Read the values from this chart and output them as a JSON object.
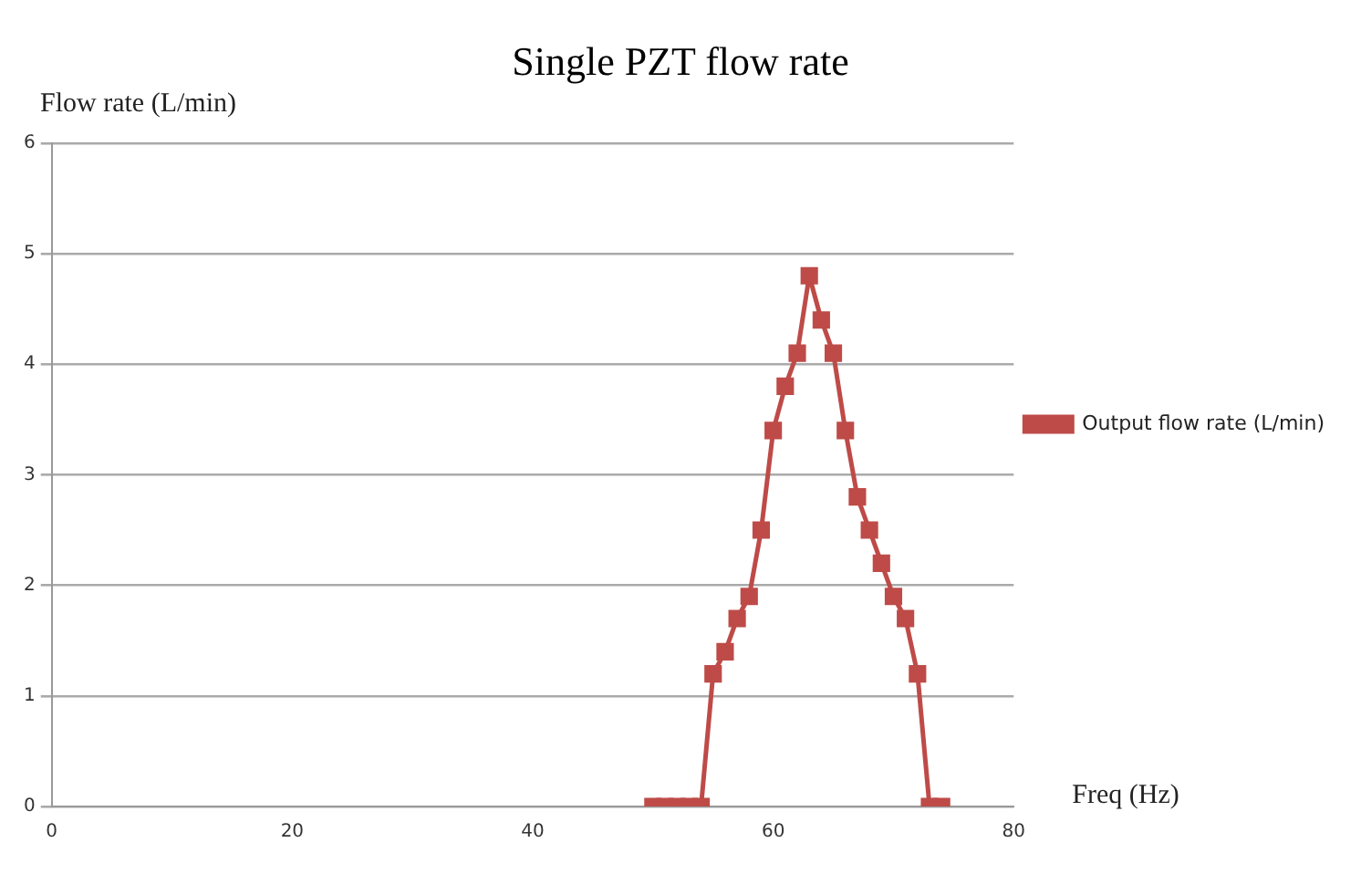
{
  "chart_data": {
    "type": "line",
    "title": "Single PZT flow rate",
    "xlabel": "Freq (Hz)",
    "ylabel": "Flow rate (L/min)",
    "x": [
      50,
      51,
      52,
      53,
      54,
      55,
      56,
      57,
      58,
      59,
      60,
      61,
      62,
      63,
      64,
      65,
      66,
      67,
      68,
      69,
      70,
      71,
      72,
      73,
      74
    ],
    "series": [
      {
        "name": "Output flow rate (L/min)",
        "color": "#be4b48",
        "values": [
          0,
          0,
          0,
          0,
          0,
          1.2,
          1.4,
          1.7,
          1.9,
          2.5,
          3.4,
          3.8,
          4.1,
          4.8,
          4.4,
          4.1,
          3.4,
          2.8,
          2.5,
          2.2,
          1.9,
          1.7,
          1.2,
          0,
          0
        ]
      }
    ],
    "xlim": [
      0,
      80
    ],
    "xticks": [
      0,
      20,
      40,
      60,
      80
    ],
    "ylim": [
      0,
      6
    ],
    "yticks": [
      0,
      1,
      2,
      3,
      4,
      5,
      6
    ],
    "grid": "y",
    "legend": "right",
    "marker": "square",
    "line_style": "solid"
  }
}
